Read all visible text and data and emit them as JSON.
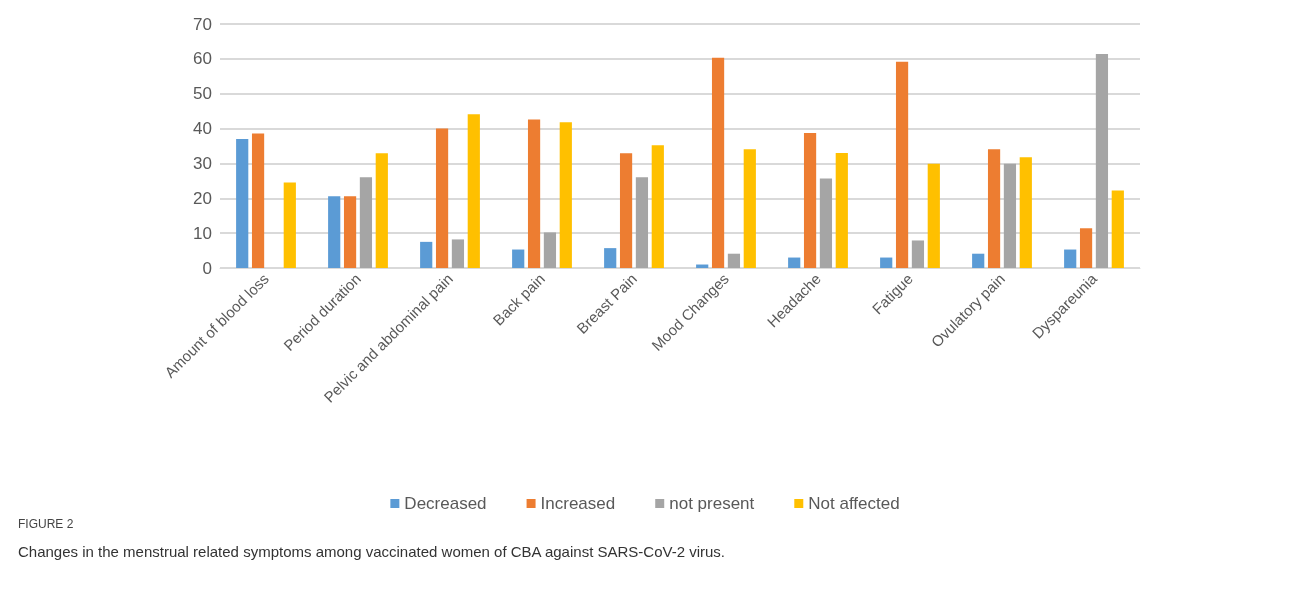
{
  "chart_data": {
    "type": "bar",
    "categories": [
      "Amount of blood loss",
      "Period duration",
      "Pelvic and abdominal pain",
      "Back pain",
      "Breast Pain",
      "Mood Changes",
      "Headache",
      "Fatigue",
      "Ovulatory pain",
      "Dyspareunia"
    ],
    "series": [
      {
        "name": "Decreased",
        "color": "#5b9bd5",
        "values": [
          37,
          20.6,
          7.5,
          5.3,
          5.7,
          1,
          3,
          3,
          4.1,
          5.3
        ]
      },
      {
        "name": "Increased",
        "color": "#ed7d31",
        "values": [
          38.6,
          20.6,
          40,
          42.6,
          32.9,
          60.3,
          38.7,
          59.2,
          34.1,
          11.4
        ]
      },
      {
        "name": "not present",
        "color": "#a5a5a5",
        "values": [
          0,
          26,
          8.2,
          10.2,
          26,
          4.1,
          25.7,
          7.9,
          29.9,
          61.4
        ]
      },
      {
        "name": "Not affected",
        "color": "#ffc000",
        "values": [
          24.5,
          32.9,
          44.1,
          41.8,
          35.2,
          34.1,
          33,
          29.9,
          31.8,
          22.2
        ]
      }
    ],
    "ylim": [
      0,
      70
    ],
    "yticks": [
      0,
      10,
      20,
      30,
      40,
      50,
      60,
      70
    ],
    "grid": "y",
    "legend": "bottom",
    "annotations": [
      "FIGURE 2",
      "Changes in the menstrual related symptoms among vaccinated women of CBA against SARS-CoV-2 virus."
    ]
  }
}
